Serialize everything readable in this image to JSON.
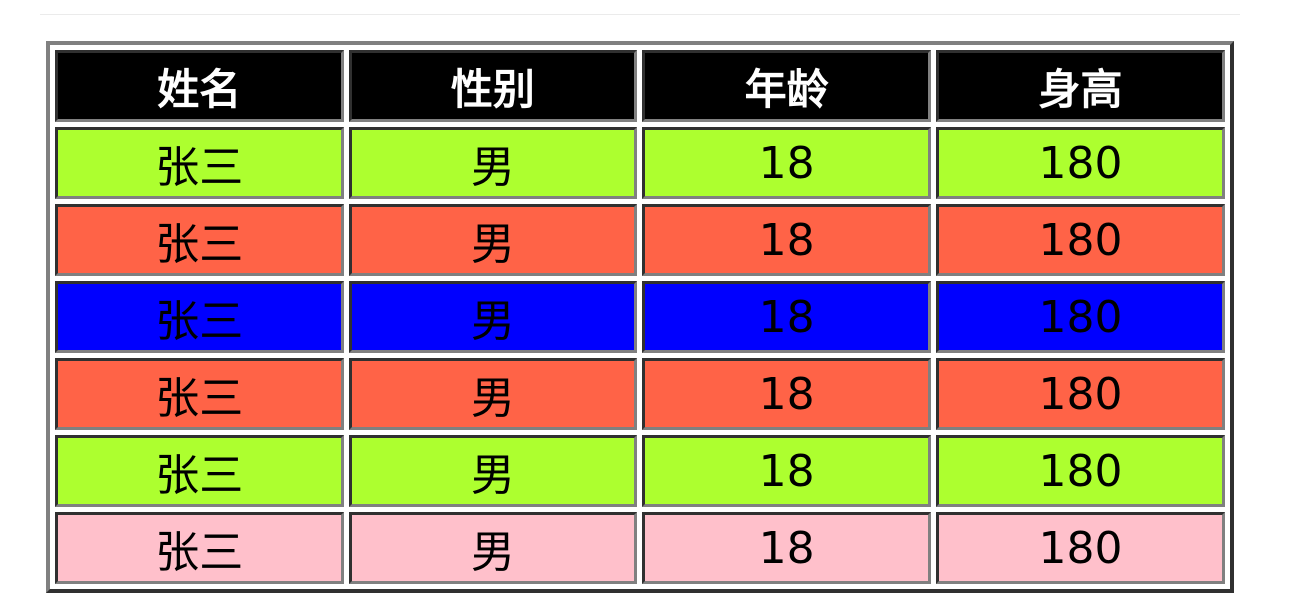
{
  "table": {
    "headers": [
      "姓名",
      "性别",
      "年龄",
      "身高"
    ],
    "rows": [
      {
        "cells": [
          "张三",
          "男",
          "18",
          "180"
        ],
        "color": "#adff2f"
      },
      {
        "cells": [
          "张三",
          "男",
          "18",
          "180"
        ],
        "color": "#ff6347"
      },
      {
        "cells": [
          "张三",
          "男",
          "18",
          "180"
        ],
        "color": "#0000ff"
      },
      {
        "cells": [
          "张三",
          "男",
          "18",
          "180"
        ],
        "color": "#ff6347"
      },
      {
        "cells": [
          "张三",
          "男",
          "18",
          "180"
        ],
        "color": "#adff2f"
      },
      {
        "cells": [
          "张三",
          "男",
          "18",
          "180"
        ],
        "color": "#ffc0cb"
      }
    ],
    "header_color": "#000000"
  }
}
